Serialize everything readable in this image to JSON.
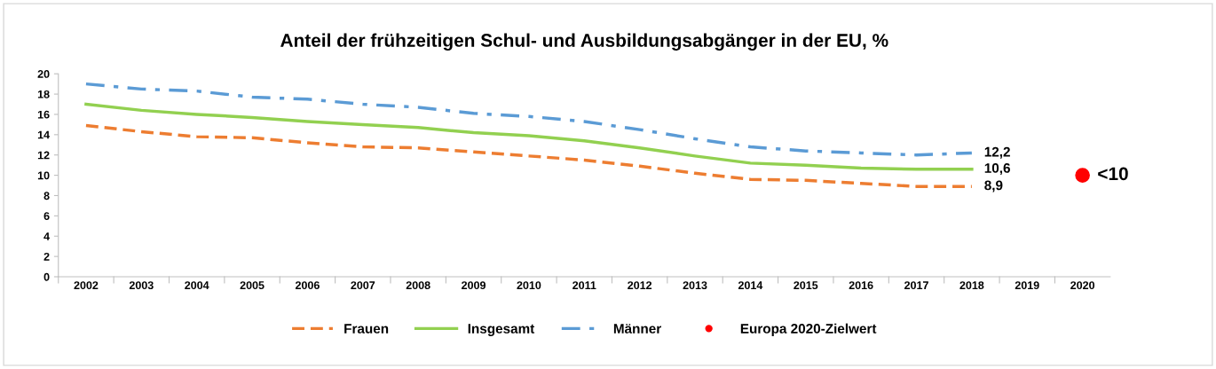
{
  "chart_data": {
    "type": "line",
    "title": "Anteil der frühzeitigen Schul- und Ausbildungsabgänger in der EU, %",
    "categories": [
      "2002",
      "2003",
      "2004",
      "2005",
      "2006",
      "2007",
      "2008",
      "2009",
      "2010",
      "2011",
      "2012",
      "2013",
      "2014",
      "2015",
      "2016",
      "2017",
      "2018",
      "2019",
      "2020"
    ],
    "series": [
      {
        "name": "Frauen",
        "color": "#ed7d31",
        "line_style": "dashed",
        "values": [
          14.9,
          14.3,
          13.8,
          13.7,
          13.2,
          12.8,
          12.7,
          12.3,
          11.9,
          11.5,
          10.9,
          10.2,
          9.6,
          9.5,
          9.2,
          8.9,
          8.9,
          null,
          null
        ],
        "value_labels": [
          null,
          null,
          null,
          null,
          null,
          null,
          null,
          null,
          null,
          null,
          null,
          null,
          null,
          null,
          null,
          null,
          "8,9",
          null,
          null
        ]
      },
      {
        "name": "Insgesamt",
        "color": "#92d050",
        "line_style": "solid",
        "values": [
          17.0,
          16.4,
          16.0,
          15.7,
          15.3,
          15.0,
          14.7,
          14.2,
          13.9,
          13.4,
          12.7,
          11.9,
          11.2,
          11.0,
          10.7,
          10.6,
          10.6,
          null,
          null
        ],
        "value_labels": [
          null,
          null,
          null,
          null,
          null,
          null,
          null,
          null,
          null,
          null,
          null,
          null,
          null,
          null,
          null,
          null,
          "10,6",
          null,
          null
        ]
      },
      {
        "name": "Männer",
        "color": "#5b9bd5",
        "line_style": "dashdot",
        "values": [
          19.0,
          18.5,
          18.3,
          17.7,
          17.5,
          17.0,
          16.7,
          16.1,
          15.8,
          15.3,
          14.5,
          13.6,
          12.8,
          12.4,
          12.2,
          12.0,
          12.2,
          null,
          null
        ],
        "value_labels": [
          null,
          null,
          null,
          null,
          null,
          null,
          null,
          null,
          null,
          null,
          null,
          null,
          null,
          null,
          null,
          null,
          "12,2",
          null,
          null
        ]
      },
      {
        "name": "Europa 2020-Zielwert",
        "type": "scatter",
        "color": "#ff0000",
        "marker": "circle",
        "values": [
          null,
          null,
          null,
          null,
          null,
          null,
          null,
          null,
          null,
          null,
          null,
          null,
          null,
          null,
          null,
          null,
          null,
          null,
          10
        ],
        "value_labels": [
          null,
          null,
          null,
          null,
          null,
          null,
          null,
          null,
          null,
          null,
          null,
          null,
          null,
          null,
          null,
          null,
          null,
          null,
          "<10"
        ]
      }
    ],
    "ylim": [
      0,
      20
    ],
    "yticks": [
      0,
      2,
      4,
      6,
      8,
      10,
      12,
      14,
      16,
      18,
      20
    ],
    "grid": false,
    "legend": "bottom"
  }
}
